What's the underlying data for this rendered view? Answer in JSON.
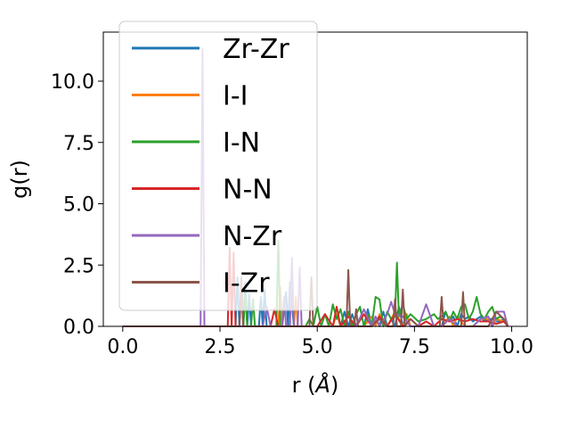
{
  "chart_data": {
    "type": "line",
    "xlabel": "r",
    "xlabel_unit": "Å",
    "ylabel": "g(r)",
    "xlim": [
      -0.5,
      10.4
    ],
    "ylim": [
      0,
      12
    ],
    "xticks": [
      "0.0",
      "2.5",
      "5.0",
      "7.5",
      "10.0"
    ],
    "xtick_values": [
      0,
      2.5,
      5,
      7.5,
      10
    ],
    "yticks": [
      "0.0",
      "2.5",
      "5.0",
      "7.5",
      "10.0"
    ],
    "ytick_values": [
      0,
      2.5,
      5,
      7.5,
      10
    ],
    "grid": false,
    "legend_position": "upper-left",
    "series": [
      {
        "name": "Zr-Zr",
        "color": "#1f77b4",
        "x": [
          0,
          2.0,
          2.9,
          2.95,
          3.0,
          3.05,
          3.1,
          3.15,
          3.2,
          3.25,
          3.3,
          3.4,
          3.5,
          3.55,
          3.6,
          3.65,
          3.7,
          3.9,
          4.1,
          4.2,
          4.25,
          4.3,
          4.4,
          4.6,
          5.2,
          5.3,
          5.4,
          5.6,
          5.7,
          5.8,
          5.9,
          6.0,
          6.2,
          6.3,
          6.4,
          6.5,
          6.6,
          6.7,
          6.8,
          6.9,
          7.0,
          7.1,
          7.2,
          7.3,
          7.4,
          7.6,
          7.8,
          8.0,
          8.2,
          8.3,
          8.4,
          8.5,
          8.6,
          8.7,
          8.8,
          8.9,
          9.0,
          9.1,
          9.2,
          9.3,
          9.4,
          9.5,
          9.6,
          9.7,
          9.8,
          9.9
        ],
        "y": [
          0,
          0,
          0,
          2.0,
          0,
          1.5,
          0,
          1.8,
          0,
          1.3,
          0,
          0,
          0,
          1.2,
          0,
          1.5,
          0,
          0,
          0,
          1.4,
          0,
          1.8,
          0,
          0,
          0,
          0,
          0,
          0,
          0.6,
          0,
          0.5,
          0,
          0,
          0.7,
          0,
          0.4,
          0,
          0.6,
          0,
          0.3,
          0,
          0.8,
          0,
          0.5,
          0,
          0,
          0,
          0,
          0,
          0.6,
          0.2,
          0.4,
          0,
          0.5,
          0.3,
          0.4,
          0.2,
          0.3,
          0.4,
          0.2,
          0.3,
          0.3,
          0.2,
          0.2,
          0.3,
          0
        ]
      },
      {
        "name": "I-I",
        "color": "#ff7f0e",
        "x": [
          0,
          3.5,
          4.0,
          4.05,
          4.1,
          4.3,
          4.4,
          4.45,
          4.5,
          4.7,
          5.0,
          5.4,
          5.5,
          5.6,
          5.8,
          6.0,
          6.2,
          6.4,
          6.5,
          6.6,
          6.8,
          7.0,
          7.2,
          7.3,
          7.4,
          7.6,
          7.8,
          8.0,
          8.2,
          8.4,
          8.5,
          8.6,
          8.8,
          9.0,
          9.2,
          9.4,
          9.5,
          9.6,
          9.8,
          9.9
        ],
        "y": [
          0,
          0,
          0,
          1.6,
          0,
          0,
          0,
          1.2,
          0,
          0,
          0,
          0,
          0.5,
          0,
          0,
          0,
          0,
          0.4,
          0,
          0.5,
          0,
          0.6,
          0,
          0.5,
          0,
          0,
          0,
          0,
          0,
          0.4,
          0,
          0.4,
          0,
          0,
          0.3,
          0.3,
          0,
          0.3,
          0.2,
          0
        ]
      },
      {
        "name": "I-N",
        "color": "#2ca02c",
        "x": [
          0,
          2.5,
          3.1,
          3.15,
          3.2,
          3.3,
          3.35,
          3.4,
          3.6,
          3.8,
          3.95,
          4.0,
          4.05,
          4.1,
          4.5,
          4.7,
          4.8,
          4.9,
          5.0,
          5.1,
          5.2,
          5.3,
          5.4,
          5.5,
          5.6,
          5.7,
          5.8,
          5.9,
          6.0,
          6.1,
          6.2,
          6.3,
          6.4,
          6.5,
          6.6,
          6.7,
          6.8,
          6.9,
          7.0,
          7.05,
          7.1,
          7.2,
          7.3,
          7.4,
          7.6,
          7.8,
          8.0,
          8.1,
          8.2,
          8.3,
          8.4,
          8.5,
          8.6,
          8.7,
          8.8,
          8.9,
          9.0,
          9.1,
          9.2,
          9.3,
          9.4,
          9.5,
          9.6,
          9.7,
          9.8,
          9.9
        ],
        "y": [
          0,
          0,
          0,
          1.3,
          0,
          0,
          1.1,
          0,
          0,
          0,
          0,
          3.5,
          0,
          0,
          0,
          0,
          0.3,
          0,
          0.8,
          0,
          0.5,
          0,
          0.9,
          0.3,
          0.7,
          0,
          0.6,
          0,
          0.5,
          0.8,
          0,
          0.5,
          0,
          1.2,
          1.1,
          0,
          0.6,
          0.3,
          0.4,
          2.6,
          0.4,
          0.9,
          0.3,
          0.5,
          0.2,
          0.3,
          0.5,
          0.3,
          0.4,
          0.6,
          0.2,
          0.6,
          0.3,
          0.8,
          0.9,
          0.3,
          0.6,
          1.2,
          0.5,
          0.3,
          0.6,
          0.8,
          0.3,
          0.4,
          0.3,
          0
        ]
      },
      {
        "name": "N-N",
        "color": "#d62728",
        "x": [
          0,
          2.5,
          2.7,
          2.75,
          2.8,
          2.85,
          2.9,
          3.0,
          3.1,
          3.2,
          3.4,
          3.6,
          3.8,
          3.9,
          4.0,
          4.2,
          4.4,
          4.6,
          4.8,
          5.0,
          5.2,
          5.4,
          5.5,
          5.6,
          5.8,
          6.0,
          6.2,
          6.4,
          6.6,
          6.8,
          7.0,
          7.2,
          7.4,
          7.6,
          7.8,
          8.0,
          8.2,
          8.4,
          8.6,
          8.8,
          9.0,
          9.2,
          9.4,
          9.6,
          9.8,
          9.9
        ],
        "y": [
          0,
          0,
          0,
          3.2,
          0,
          3.0,
          0,
          0,
          0,
          0,
          0,
          0,
          0,
          0.7,
          0,
          0,
          0,
          0,
          0,
          0,
          0.5,
          0,
          0.8,
          0,
          0.4,
          0,
          0.5,
          0,
          0.4,
          0,
          0.5,
          0,
          0.3,
          0,
          0.2,
          0,
          0.3,
          0.2,
          0.3,
          0.2,
          0.3,
          0.2,
          0.2,
          0.1,
          0.2,
          0
        ]
      },
      {
        "name": "N-Zr",
        "color": "#9467bd",
        "x": [
          0,
          1.95,
          2.0,
          2.05,
          2.1,
          2.15,
          2.2,
          2.5,
          2.8,
          3.2,
          3.6,
          3.7,
          3.8,
          4.1,
          4.15,
          4.2,
          4.3,
          4.35,
          4.4,
          4.5,
          4.55,
          4.6,
          4.8,
          5.0,
          5.2,
          5.4,
          5.6,
          5.8,
          6.0,
          6.2,
          6.4,
          6.5,
          6.6,
          6.8,
          6.9,
          7.0,
          7.2,
          7.4,
          7.6,
          7.8,
          8.0,
          8.2,
          8.4,
          8.6,
          8.8,
          9.0,
          9.2,
          9.4,
          9.5,
          9.6,
          9.7,
          9.8,
          9.9
        ],
        "y": [
          0,
          0,
          0,
          11.3,
          0,
          0,
          0,
          0,
          0,
          0,
          0,
          0.8,
          0,
          0,
          1.2,
          0,
          0,
          2.8,
          0,
          0,
          2.4,
          0,
          0,
          0,
          0,
          0,
          0,
          0,
          0,
          0.7,
          0,
          0.4,
          0,
          0.5,
          1.0,
          0.5,
          0.4,
          0,
          0,
          0.9,
          0,
          0,
          0.3,
          0,
          0,
          0,
          0.3,
          0.4,
          0,
          0.6,
          0.6,
          0.6,
          0
        ]
      },
      {
        "name": "I-Zr",
        "color": "#8c564b",
        "x": [
          0,
          2.8,
          3.0,
          3.05,
          3.1,
          3.2,
          3.4,
          3.6,
          3.8,
          4.0,
          4.2,
          4.4,
          4.6,
          4.8,
          4.85,
          4.9,
          5.0,
          5.2,
          5.4,
          5.6,
          5.75,
          5.8,
          5.85,
          5.95,
          6.0,
          6.05,
          6.2,
          6.4,
          6.6,
          6.8,
          6.95,
          7.0,
          7.05,
          7.15,
          7.2,
          7.25,
          7.4,
          7.6,
          7.8,
          8.0,
          8.15,
          8.2,
          8.25,
          8.4,
          8.6,
          8.7,
          8.75,
          8.8,
          9.0,
          9.2,
          9.4,
          9.6,
          9.8,
          9.9
        ],
        "y": [
          0,
          0,
          0,
          2.0,
          0,
          0,
          0,
          0,
          0,
          0,
          0,
          0,
          0,
          0,
          2.0,
          0,
          0,
          0,
          0,
          0,
          0,
          2.3,
          0,
          0,
          0.7,
          0,
          0,
          0,
          0.3,
          0,
          0,
          1.1,
          0,
          0,
          1.5,
          0,
          0.3,
          0,
          0,
          0,
          0,
          1.2,
          0,
          0,
          0,
          0,
          1.4,
          0,
          0,
          0,
          0,
          0.6,
          0.3,
          0
        ]
      }
    ]
  }
}
